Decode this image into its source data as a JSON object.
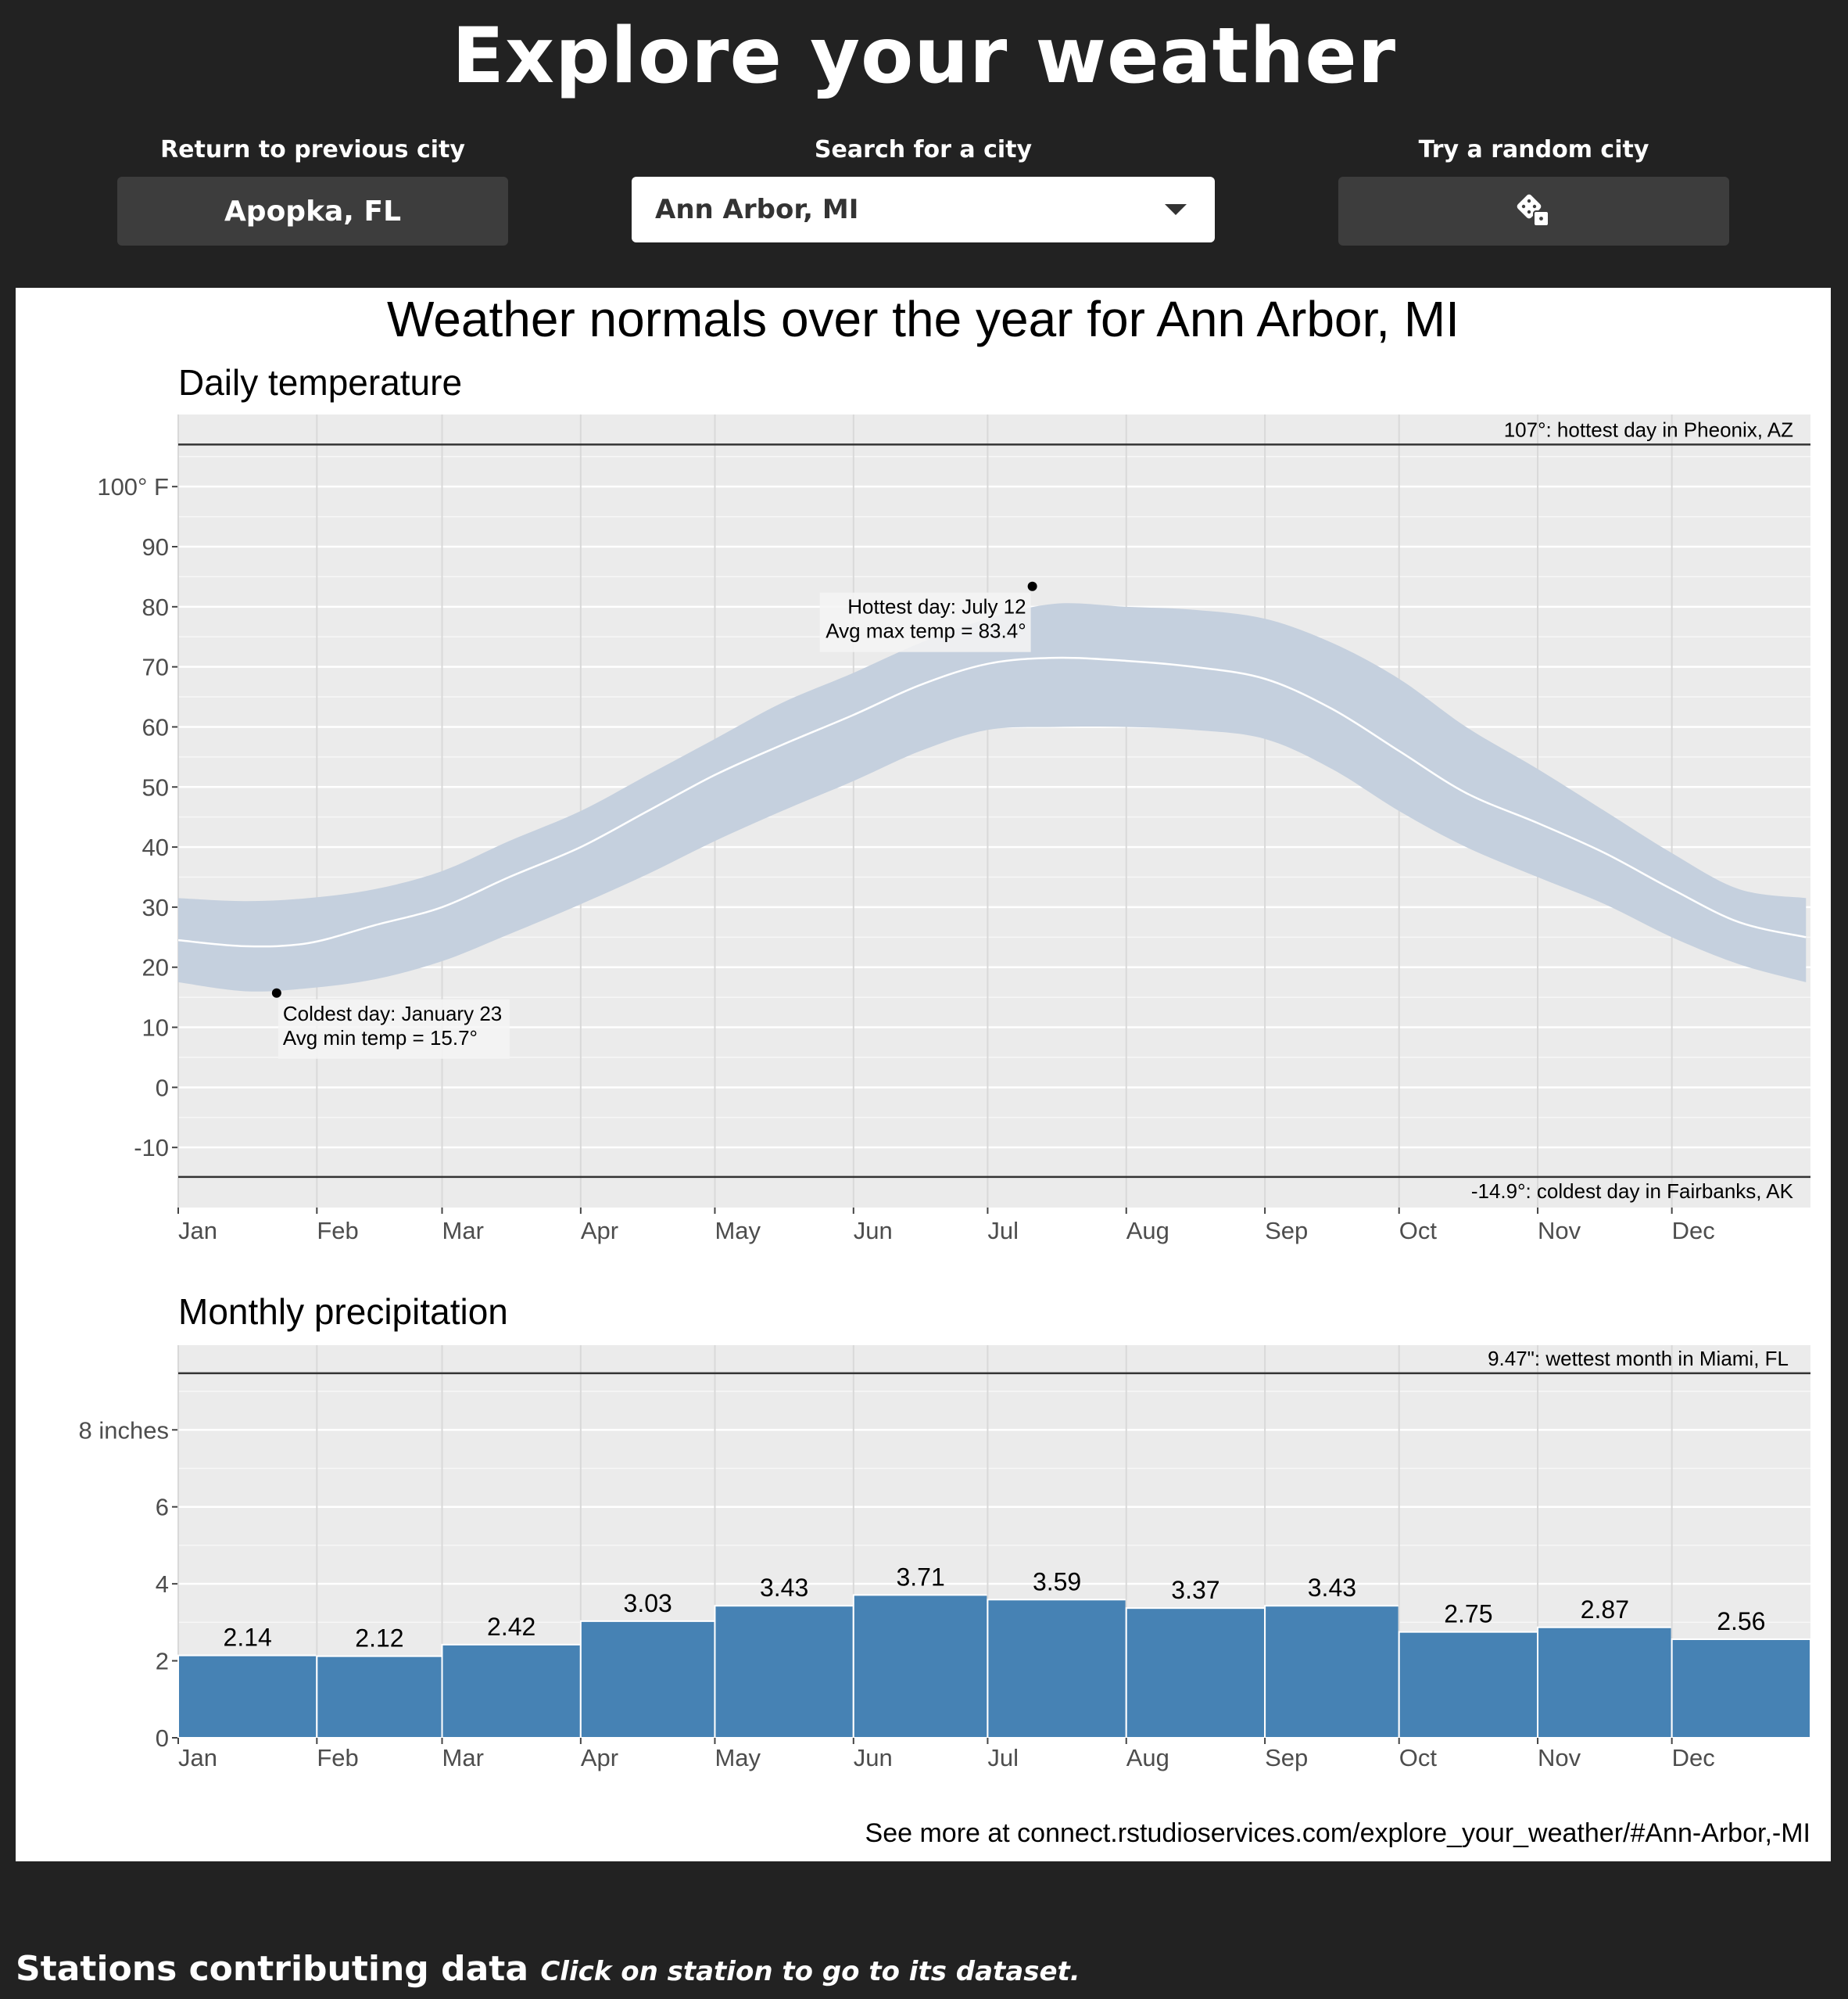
{
  "app": {
    "title": "Explore your weather"
  },
  "controls": {
    "previous": {
      "label": "Return to previous city",
      "value": "Apopka, FL"
    },
    "search": {
      "label": "Search for a city",
      "value": "Ann Arbor, MI"
    },
    "random": {
      "label": "Try a random city",
      "icon": "dice-icon"
    }
  },
  "chart_panel": {
    "title": "Weather normals over the year for Ann Arbor, MI",
    "source": "See more at connect.rstudioservices.com/explore_your_weather/#Ann-Arbor,-MI"
  },
  "footer": {
    "title": "Stations contributing data",
    "hint": "Click on station to go to its dataset."
  },
  "colors": {
    "background": "#222222",
    "panel": "#ebebeb",
    "band": "#c5d0de",
    "bar": "#4682b4"
  },
  "chart_data": [
    {
      "type": "area",
      "title": "Daily temperature",
      "x_ticks": [
        "Jan",
        "Feb",
        "Mar",
        "Apr",
        "May",
        "Jun",
        "Jul",
        "Aug",
        "Sep",
        "Oct",
        "Nov",
        "Dec"
      ],
      "y_ticks": [
        "100° F",
        "90",
        "80",
        "70",
        "60",
        "50",
        "40",
        "30",
        "20",
        "10",
        "0",
        "-10"
      ],
      "y_tick_values": [
        100,
        90,
        80,
        70,
        60,
        50,
        40,
        30,
        20,
        10,
        0,
        -10
      ],
      "ylim": [
        -20,
        112
      ],
      "grid": true,
      "series": [
        {
          "name": "max",
          "x": [
            1,
            16,
            30,
            45,
            60,
            75,
            91,
            106,
            121,
            136,
            152,
            167,
            182,
            197,
            213,
            228,
            244,
            259,
            274,
            289,
            305,
            320,
            335,
            350,
            365
          ],
          "values": [
            31.5,
            31,
            31.5,
            33,
            36,
            41,
            46,
            52,
            58,
            64,
            69,
            74,
            78,
            80.5,
            80,
            79.5,
            78,
            74,
            68,
            60,
            53,
            46,
            39,
            33,
            31.5
          ]
        },
        {
          "name": "mean",
          "x": [
            1,
            16,
            30,
            45,
            60,
            75,
            91,
            106,
            121,
            136,
            152,
            167,
            182,
            197,
            213,
            228,
            244,
            259,
            274,
            289,
            305,
            320,
            335,
            350,
            365
          ],
          "values": [
            24.5,
            23.5,
            24,
            27,
            30,
            35,
            40,
            46,
            52,
            57,
            62,
            67,
            70.5,
            71.5,
            71,
            70,
            68,
            63,
            56,
            49,
            44,
            39,
            33,
            27.5,
            25
          ]
        },
        {
          "name": "min",
          "x": [
            1,
            16,
            30,
            45,
            60,
            75,
            91,
            106,
            121,
            136,
            152,
            167,
            182,
            197,
            213,
            228,
            244,
            259,
            274,
            289,
            305,
            320,
            335,
            350,
            365
          ],
          "values": [
            17.5,
            16,
            16.5,
            18,
            21,
            25.5,
            30.5,
            35.5,
            41,
            46,
            51,
            56,
            59.5,
            60,
            60,
            59.5,
            58,
            53,
            46,
            40,
            35,
            30.5,
            25,
            20.5,
            17.5
          ]
        }
      ],
      "annotations": [
        {
          "x": 192,
          "y": 83.4,
          "label_lines": [
            "Hottest day: July 12",
            "Avg max temp = 83.4°"
          ]
        },
        {
          "x": 23,
          "y": 15.7,
          "label_lines": [
            "Coldest day: January 23",
            "Avg min temp = 15.7°"
          ]
        }
      ],
      "reference_lines": [
        {
          "y": 107,
          "label": "107°: hottest day in Pheonix, AZ"
        },
        {
          "y": -14.9,
          "label": "-14.9°: coldest day in Fairbanks, AK"
        }
      ]
    },
    {
      "type": "bar",
      "title": "Monthly precipitation",
      "categories": [
        "Jan",
        "Feb",
        "Mar",
        "Apr",
        "May",
        "Jun",
        "Jul",
        "Aug",
        "Sep",
        "Oct",
        "Nov",
        "Dec"
      ],
      "values": [
        2.14,
        2.12,
        2.42,
        3.03,
        3.43,
        3.71,
        3.59,
        3.37,
        3.43,
        2.75,
        2.87,
        2.56
      ],
      "value_labels": [
        "2.14",
        "2.12",
        "2.42",
        "3.03",
        "3.43",
        "3.71",
        "3.59",
        "3.37",
        "3.43",
        "2.75",
        "2.87",
        "2.56"
      ],
      "y_ticks": [
        "8 inches",
        "6",
        "4",
        "2",
        "0"
      ],
      "y_tick_values": [
        8,
        6,
        4,
        2,
        0
      ],
      "ylim": [
        0,
        10.2
      ],
      "grid": true,
      "reference_lines": [
        {
          "y": 9.47,
          "label": "9.47\": wettest month in Miami, FL"
        }
      ]
    }
  ]
}
